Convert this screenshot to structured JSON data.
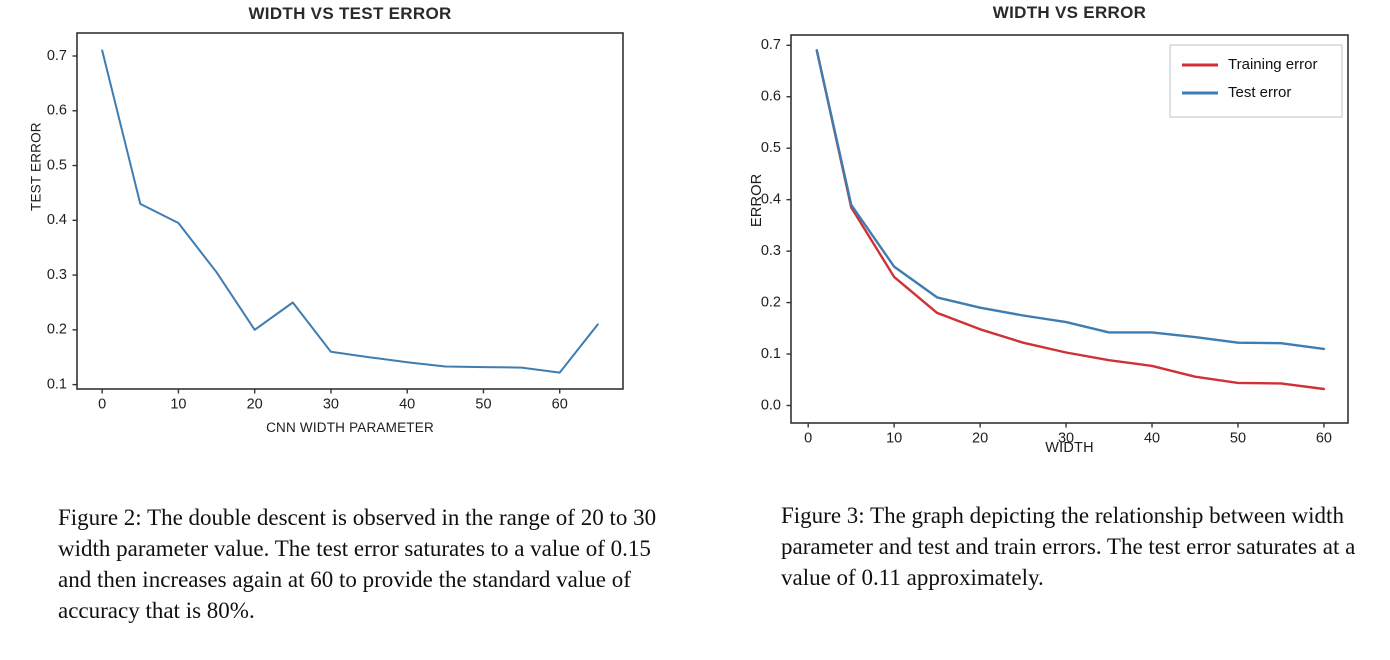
{
  "captions": {
    "figure2": "Figure 2: The double descent is observed in the range of 20 to 30 width parameter value. The test error saturates to a value of 0.15 and then increases again at 60 to provide the standard value of accuracy that is 80%.",
    "figure3": "Figure 3: The graph depicting the relationship between width parameter and test and train errors. The test error saturates at a value of 0.11 approximately."
  },
  "colors": {
    "test_error_blue": "#3f7cb0",
    "training_error_red": "#cf3136",
    "axis": "#333333",
    "tick_text": "#1f1f1f",
    "legend_border": "#cccccc"
  },
  "chart_data": [
    {
      "type": "line",
      "title": "WIDTH VS TEST ERROR",
      "xlabel": "CNN WIDTH PARAMETER",
      "ylabel": "TEST ERROR",
      "grid": false,
      "legend": null,
      "xlim": [
        -3.3,
        68.3
      ],
      "ylim": [
        0.092,
        0.742
      ],
      "xticks": {
        "values": [
          0,
          10,
          20,
          30,
          40,
          50,
          60
        ],
        "labels": [
          "0",
          "10",
          "20",
          "30",
          "40",
          "50",
          "60"
        ]
      },
      "yticks": {
        "values": [
          0.1,
          0.2,
          0.3,
          0.4,
          0.5,
          0.6,
          0.7
        ],
        "labels": [
          "0.1",
          "0.2",
          "0.3",
          "0.4",
          "0.5",
          "0.6",
          "0.7"
        ]
      },
      "x": [
        0,
        5,
        10,
        15,
        20,
        25,
        30,
        35,
        40,
        45,
        50,
        55,
        60,
        65
      ],
      "series": [
        {
          "name": "Test error",
          "color": "#3f7cb0",
          "line_width": 2,
          "values": [
            0.71,
            0.43,
            0.395,
            0.305,
            0.2,
            0.25,
            0.16,
            0.15,
            0.141,
            0.133,
            0.132,
            0.131,
            0.122,
            0.21
          ]
        }
      ]
    },
    {
      "type": "line",
      "title": "WIDTH VS ERROR",
      "xlabel": "WIDTH",
      "ylabel": "ERROR",
      "grid": false,
      "legend": {
        "position": "upper right",
        "entries": [
          "Training error",
          "Test error"
        ],
        "border_color": "#cccccc"
      },
      "xlim": [
        -2.0,
        62.8
      ],
      "ylim": [
        -0.034,
        0.72
      ],
      "xticks": {
        "values": [
          0,
          10,
          20,
          30,
          40,
          50,
          60
        ],
        "labels": [
          "0",
          "10",
          "20",
          "30",
          "40",
          "50",
          "60"
        ]
      },
      "yticks": {
        "values": [
          0.0,
          0.1,
          0.2,
          0.3,
          0.4,
          0.5,
          0.6,
          0.7
        ],
        "labels": [
          "0.0",
          "0.1",
          "0.2",
          "0.3",
          "0.4",
          "0.5",
          "0.6",
          "0.7"
        ]
      },
      "x": [
        1,
        5,
        10,
        15,
        20,
        25,
        30,
        35,
        40,
        45,
        50,
        55,
        60
      ],
      "series": [
        {
          "name": "Training error",
          "color": "#cf3136",
          "line_width": 2.4,
          "values": [
            0.69,
            0.385,
            0.25,
            0.18,
            0.148,
            0.122,
            0.103,
            0.088,
            0.077,
            0.056,
            0.044,
            0.043,
            0.032
          ]
        },
        {
          "name": "Test error",
          "color": "#3f7cb0",
          "line_width": 2.4,
          "values": [
            0.69,
            0.39,
            0.27,
            0.21,
            0.19,
            0.175,
            0.162,
            0.142,
            0.142,
            0.133,
            0.122,
            0.121,
            0.11
          ]
        }
      ]
    }
  ]
}
